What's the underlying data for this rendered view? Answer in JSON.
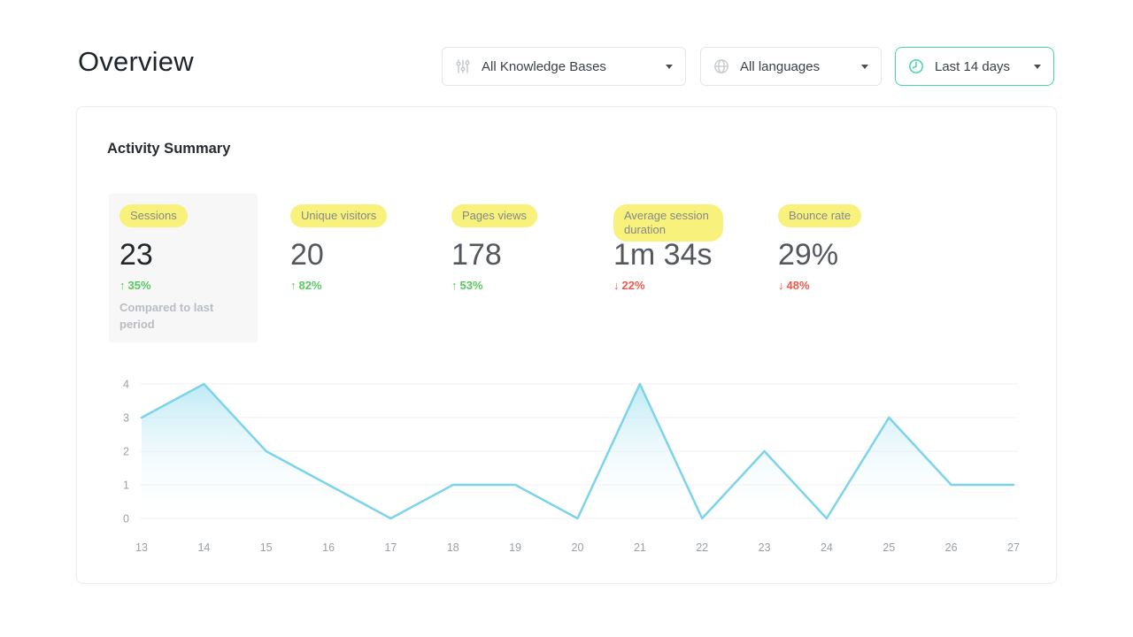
{
  "page": {
    "title": "Overview"
  },
  "filters": [
    {
      "label": "All Knowledge Bases",
      "icon": "sliders-icon"
    },
    {
      "label": "All languages",
      "icon": "globe-icon"
    },
    {
      "label": "Last 14 days",
      "icon": "clock-icon"
    }
  ],
  "activity": {
    "title": "Activity Summary",
    "metrics": [
      {
        "label": "Sessions",
        "value": "23",
        "arrow": "↑",
        "delta": "35%",
        "direction": "up",
        "note": "Compared to last period",
        "selected": true
      },
      {
        "label": "Unique visitors",
        "value": "20",
        "arrow": "↑",
        "delta": "82%",
        "direction": "up"
      },
      {
        "label": "Pages views",
        "value": "178",
        "arrow": "↑",
        "delta": "53%",
        "direction": "up"
      },
      {
        "label": "Average session duration",
        "value": "1m 34s",
        "arrow": "↓",
        "delta": "22%",
        "direction": "down"
      },
      {
        "label": "Bounce rate",
        "value": "29%",
        "arrow": "↓",
        "delta": "48%",
        "direction": "down"
      }
    ]
  },
  "chart_data": {
    "type": "area",
    "title": "",
    "xlabel": "",
    "ylabel": "",
    "x": [
      13,
      14,
      15,
      16,
      17,
      18,
      19,
      20,
      21,
      22,
      23,
      24,
      25,
      26,
      27
    ],
    "values": [
      3,
      4,
      2,
      1,
      0,
      1,
      1,
      0,
      4,
      0,
      2,
      0,
      3,
      1,
      1
    ],
    "ylim": [
      0,
      4
    ],
    "yticks": [
      0,
      1,
      2,
      3,
      4
    ],
    "grid": true,
    "legend": "none",
    "line_color": "#7dd4ea"
  },
  "colors": {
    "accent_green": "#46d7a4",
    "positive": "#57c95f",
    "negative": "#f2594b",
    "highlight_yellow": "#f8f17b",
    "chart_line": "#7dd4ea"
  }
}
